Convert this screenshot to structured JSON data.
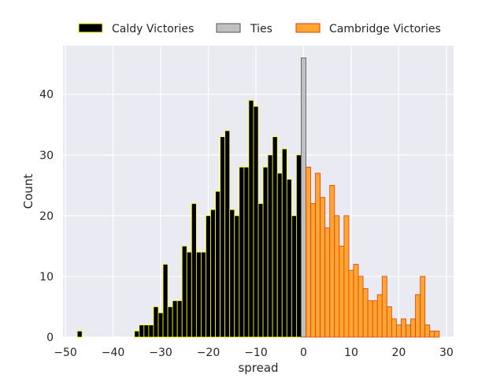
{
  "chart_data": {
    "type": "bar",
    "xlabel": "spread",
    "ylabel": "Count",
    "xlim": [
      -50.5,
      31.5
    ],
    "ylim": [
      0,
      48
    ],
    "xticks": [
      -50,
      -40,
      -30,
      -20,
      -10,
      0,
      10,
      20,
      30
    ],
    "yticks": [
      0,
      10,
      20,
      30,
      40
    ],
    "x_tick_labels": [
      "−50",
      "−40",
      "−30",
      "−20",
      "−10",
      "0",
      "10",
      "20",
      "30"
    ],
    "y_tick_labels": [
      "0",
      "10",
      "20",
      "30",
      "40"
    ],
    "grid": true,
    "legend_position": "top-center",
    "series": [
      {
        "name": "Caldy Victories",
        "fill": "#000000",
        "edge": "#ffff00",
        "x": [
          -47,
          -35,
          -34,
          -33,
          -32,
          -31,
          -30,
          -29,
          -28,
          -27,
          -26,
          -25,
          -24,
          -23,
          -22,
          -21,
          -20,
          -19,
          -18,
          -17,
          -16,
          -15,
          -14,
          -13,
          -12,
          -11,
          -10,
          -9,
          -8,
          -7,
          -6,
          -5,
          -4,
          -3,
          -2,
          -1
        ],
        "values": [
          1,
          1,
          2,
          2,
          2,
          5,
          4,
          12,
          5,
          6,
          6,
          15,
          14,
          22,
          14,
          14,
          20,
          21,
          24,
          33,
          34,
          21,
          20,
          28,
          28,
          39,
          38,
          22,
          28,
          30,
          33,
          27,
          31,
          26,
          20,
          30
        ]
      },
      {
        "name": "Ties",
        "fill": "#c0c0c0",
        "edge": "#555555",
        "x": [
          0
        ],
        "values": [
          46
        ]
      },
      {
        "name": "Cambridge Victories",
        "fill": "#ffa533",
        "edge": "#e04000",
        "x": [
          1,
          2,
          3,
          4,
          5,
          6,
          7,
          8,
          9,
          10,
          11,
          12,
          13,
          14,
          15,
          16,
          17,
          18,
          19,
          20,
          21,
          22,
          23,
          24,
          25,
          26,
          27,
          28
        ],
        "values": [
          28,
          22,
          27,
          23,
          18,
          25,
          20,
          15,
          20,
          11,
          12,
          10,
          8,
          6,
          6,
          7,
          10,
          5,
          3,
          2,
          3,
          2,
          3,
          7,
          10,
          2,
          1,
          1
        ]
      }
    ]
  }
}
